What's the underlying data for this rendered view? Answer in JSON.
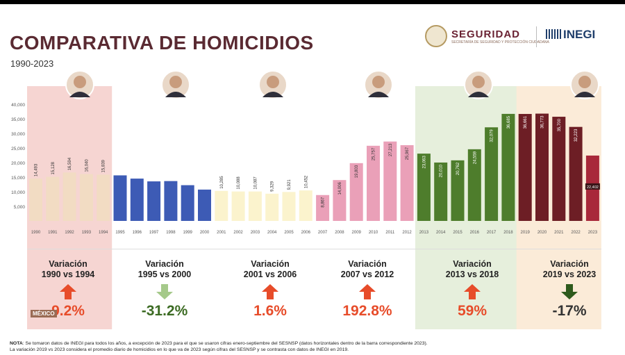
{
  "header": {
    "title": "COMPARATIVA DE HOMICIDIOS",
    "subtitle": "1990-2023",
    "seguridad_logo": "SEGURIDAD",
    "seguridad_subtext": "SECRETARÍA DE SEGURIDAD Y PROTECCIÓN CIUDADANA",
    "inegi_logo": "INEGI"
  },
  "colors": {
    "title": "#5a2a32",
    "period1_bg": "#f6d5d2",
    "period1_bar": "#f2dcc3",
    "period2_bar": "#3d5bb5",
    "period3_bar": "#fbf3cd",
    "period4_bar": "#eaa0b8",
    "period5_bg": "#e6efdc",
    "period5_bar": "#4e7d2c",
    "period6_bg": "#fbebd8",
    "period6_bar": "#6d1e25",
    "period6_last_bar": "#a8283a",
    "up_arrow": "#e74c2a",
    "down_arrow_light": "#a5c98a",
    "down_arrow_dark": "#2e5a1c"
  },
  "chart_data": {
    "type": "bar",
    "title": "COMPARATIVA DE HOMICIDIOS",
    "ylim": [
      0,
      40000
    ],
    "yticks": [
      "5,000",
      "10,000",
      "15,000",
      "20,000",
      "25,000",
      "30,000",
      "35,000",
      "40,000"
    ],
    "grid": false,
    "categories": [
      "1990",
      "1991",
      "1992",
      "1993",
      "1994",
      "1995",
      "1996",
      "1997",
      "1998",
      "1999",
      "2000",
      "2001",
      "2002",
      "2003",
      "2004",
      "2005",
      "2006",
      "2007",
      "2008",
      "2009",
      "2010",
      "2011",
      "2012",
      "2013",
      "2014",
      "2015",
      "2016",
      "2017",
      "2018",
      "2019",
      "2020",
      "2021",
      "2022",
      "2023"
    ],
    "values": [
      14493,
      15128,
      16594,
      16040,
      15839,
      15612,
      14505,
      13552,
      13656,
      12249,
      10737,
      10285,
      10088,
      10087,
      9329,
      9921,
      10452,
      8867,
      14006,
      19803,
      25757,
      27213,
      25967,
      23063,
      20010,
      20762,
      24559,
      32079,
      36685,
      36661,
      36773,
      35700,
      32223,
      22402
    ],
    "labels": [
      "14,493",
      "15,128",
      "16,594",
      "16,040",
      "15,839",
      "15,612",
      "14,505",
      "13,552",
      "13,656",
      "12,249",
      "10,737",
      "10,285",
      "10,088",
      "10,087",
      "9,329",
      "9,921",
      "10,452",
      "8,867",
      "14,006",
      "19,803",
      "25,757",
      "27,213",
      "25,967",
      "23,063",
      "20,010",
      "20,762",
      "24,559",
      "32,079",
      "36,685",
      "36,661",
      "36,773",
      "35,700",
      "32,223",
      "22,402"
    ]
  },
  "periods": [
    {
      "variation_label": "Variación",
      "range": "1990 vs 1994",
      "value": "9.2%",
      "direction": "up"
    },
    {
      "variation_label": "Variación",
      "range": "1995 vs 2000",
      "value": "-31.2%",
      "direction": "down"
    },
    {
      "variation_label": "Variación",
      "range": "2001 vs 2006",
      "value": "1.6%",
      "direction": "up"
    },
    {
      "variation_label": "Variación",
      "range": "2007 vs 2012",
      "value": "192.8%",
      "direction": "up"
    },
    {
      "variation_label": "Variación",
      "range": "2013 vs 2018",
      "value": "59%",
      "direction": "up"
    },
    {
      "variation_label": "Variación",
      "range": "2019 vs 2023",
      "value": "-17%",
      "direction": "down"
    }
  ],
  "notes": {
    "label": "NOTA",
    "line1": ": Se tomaron datos de INEGI para todos los años, a excepción de 2023 para el que se usaron cifras enero-septiembre del SESNSP (datos horizontales dentro de la barra correspondiente 2023).",
    "line2": "La variación 2019 vs 2023 considera el promedio diario de homicidios en lo que va de 2023 según cifras del SESNSP y se contrasta con datos de INEGI en 2019."
  },
  "watermark": "MÉXICO"
}
